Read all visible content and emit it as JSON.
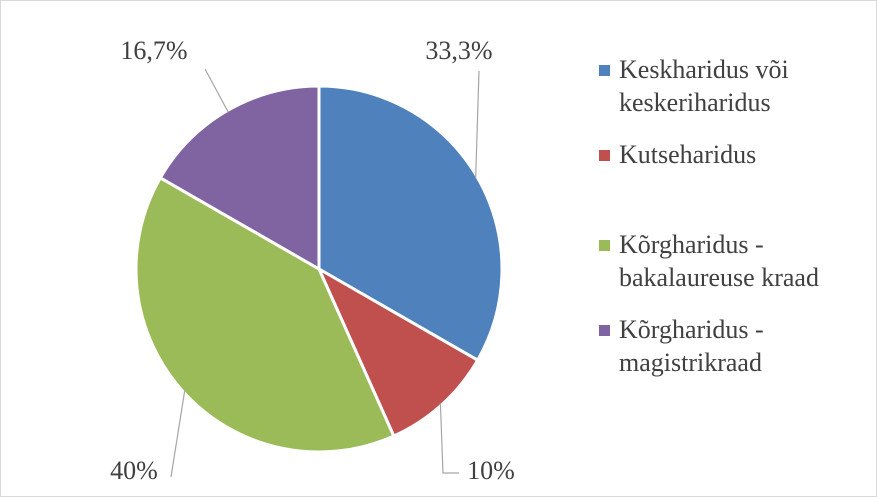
{
  "chart_data": {
    "type": "pie",
    "categories": [
      "Keskharidus või keskeriharidus",
      "Kutseharidus",
      "Kõrgharidus - bakalaureuse kraad",
      "Kõrgharidus - magistrikraad"
    ],
    "values": [
      33.3,
      10,
      40,
      16.7
    ],
    "value_labels": [
      "33,3%",
      "10%",
      "40%",
      "16,7%"
    ],
    "colors": [
      "#4f81bd",
      "#c0504d",
      "#9bbb59",
      "#8064a2"
    ],
    "legend": "right"
  }
}
